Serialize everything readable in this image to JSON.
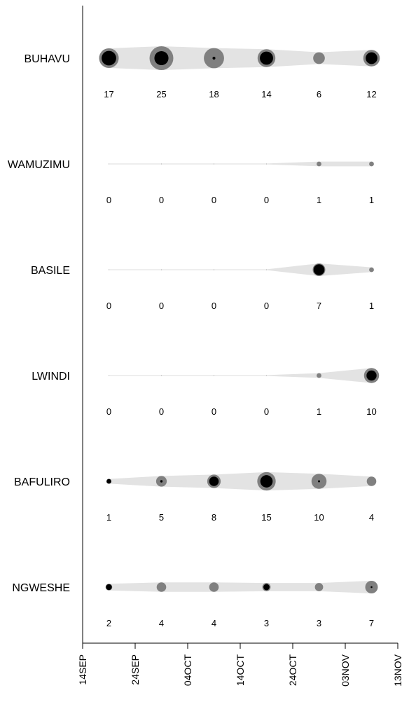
{
  "chart_data": {
    "type": "bubble-timeline",
    "x_axis": {
      "ticks": [
        "14SEP",
        "24SEP",
        "04OCT",
        "14OCT",
        "24OCT",
        "03NOV",
        "13NOV"
      ],
      "range": [
        "14SEP",
        "13NOV"
      ]
    },
    "x": [
      "19SEP",
      "29SEP",
      "09OCT",
      "19OCT",
      "29OCT",
      "08NOV"
    ],
    "max_value": 25,
    "colors": {
      "band": "#e3e3e3",
      "outer": "#808080",
      "inner": "#000000"
    },
    "series": [
      {
        "name": "BUHAVU",
        "values": [
          17,
          25,
          18,
          14,
          6,
          12
        ],
        "inner_share": [
          0.55,
          0.35,
          0.02,
          0.55,
          0.0,
          0.5
        ]
      },
      {
        "name": "WAMUZIMU",
        "values": [
          0,
          0,
          0,
          0,
          1,
          1
        ],
        "inner_share": [
          0,
          0,
          0,
          0,
          0,
          0
        ]
      },
      {
        "name": "BASILE",
        "values": [
          0,
          0,
          0,
          0,
          7,
          1
        ],
        "inner_share": [
          0,
          0,
          0,
          0,
          0.75,
          0
        ]
      },
      {
        "name": "LWINDI",
        "values": [
          0,
          0,
          0,
          0,
          1,
          10
        ],
        "inner_share": [
          0,
          0,
          0,
          0,
          0,
          0.45
        ]
      },
      {
        "name": "BAFULIRO",
        "values": [
          1,
          5,
          8,
          15,
          10,
          4
        ],
        "inner_share": [
          1.0,
          0.05,
          0.5,
          0.45,
          0.02,
          0
        ]
      },
      {
        "name": "NGWESHE",
        "values": [
          2,
          4,
          4,
          3,
          3,
          7
        ],
        "inner_share": [
          0.75,
          0,
          0,
          0.55,
          0,
          0.02
        ]
      }
    ]
  }
}
